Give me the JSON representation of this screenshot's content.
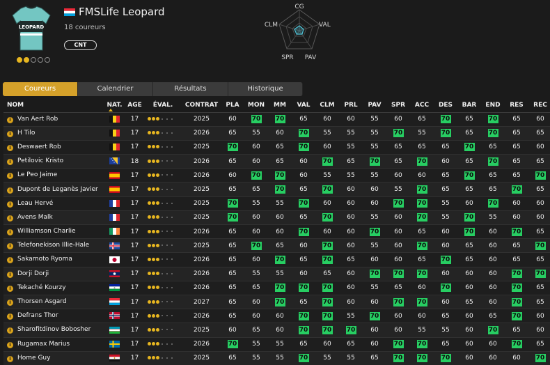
{
  "team": {
    "name": "FMSLife Leopard",
    "riders_count": "18 coureurs",
    "badge": "CNT",
    "stars_filled": 2,
    "stars_total": 5,
    "flag": "lu",
    "jersey_colors": {
      "main": "#73c6c2",
      "band": "#1e2c2b",
      "text": "LEOPARD"
    }
  },
  "radar": {
    "labels": {
      "top": "CG",
      "right": "VAL",
      "bottom_right": "PAV",
      "bottom_left": "SPR",
      "left": "CLM"
    },
    "accent": "#4fc3d6"
  },
  "tabs": [
    {
      "label": "Coureurs",
      "active": true
    },
    {
      "label": "Calendrier",
      "active": false
    },
    {
      "label": "Résultats",
      "active": false
    },
    {
      "label": "Historique",
      "active": false
    }
  ],
  "columns": [
    "NOM",
    "NAT.",
    "AGE",
    "ÉVAL.",
    "CONTRAT",
    "PLA",
    "MON",
    "MM",
    "VAL",
    "CLM",
    "PRL",
    "PAV",
    "SPR",
    "ACC",
    "DES",
    "BAR",
    "END",
    "RES",
    "REC"
  ],
  "highlight_color": "#27ce62",
  "riders": [
    {
      "name": "Van Aert Rob",
      "nat": "be",
      "age": "17",
      "eval": 3,
      "contract": "2025",
      "stats": [
        "60",
        "70",
        "70",
        "65",
        "60",
        "60",
        "55",
        "60",
        "65",
        "70",
        "65",
        "70",
        "65",
        "60"
      ],
      "hi": [
        false,
        true,
        true,
        false,
        false,
        false,
        false,
        false,
        false,
        true,
        false,
        true,
        false,
        false
      ]
    },
    {
      "name": "H Tilo",
      "nat": "be",
      "age": "17",
      "eval": 3,
      "contract": "2026",
      "stats": [
        "65",
        "55",
        "60",
        "70",
        "55",
        "55",
        "55",
        "70",
        "55",
        "70",
        "65",
        "70",
        "65",
        "65"
      ],
      "hi": [
        false,
        false,
        false,
        true,
        false,
        false,
        false,
        true,
        false,
        true,
        false,
        true,
        false,
        false
      ]
    },
    {
      "name": "Deswaert Rob",
      "nat": "be",
      "age": "17",
      "eval": 3,
      "contract": "2025",
      "stats": [
        "70",
        "60",
        "65",
        "70",
        "60",
        "55",
        "55",
        "65",
        "65",
        "65",
        "70",
        "65",
        "65",
        "60"
      ],
      "hi": [
        true,
        false,
        false,
        true,
        false,
        false,
        false,
        false,
        false,
        false,
        true,
        false,
        false,
        false
      ]
    },
    {
      "name": "Petilovic Kristo",
      "nat": "ba",
      "age": "18",
      "eval": 3,
      "contract": "2026",
      "stats": [
        "65",
        "60",
        "65",
        "60",
        "70",
        "65",
        "70",
        "65",
        "70",
        "60",
        "65",
        "70",
        "65",
        "65"
      ],
      "hi": [
        false,
        false,
        false,
        false,
        true,
        false,
        true,
        false,
        true,
        false,
        false,
        true,
        false,
        false
      ]
    },
    {
      "name": "Le Peo Jaime",
      "nat": "es",
      "age": "17",
      "eval": 3,
      "contract": "2026",
      "stats": [
        "60",
        "70",
        "70",
        "60",
        "55",
        "55",
        "55",
        "60",
        "60",
        "65",
        "70",
        "65",
        "65",
        "70"
      ],
      "hi": [
        false,
        true,
        true,
        false,
        false,
        false,
        false,
        false,
        false,
        false,
        true,
        false,
        false,
        true
      ]
    },
    {
      "name": "Dupont de Leganès Javier",
      "nat": "es",
      "age": "17",
      "eval": 3,
      "contract": "2025",
      "stats": [
        "65",
        "65",
        "70",
        "65",
        "70",
        "60",
        "60",
        "55",
        "70",
        "65",
        "65",
        "65",
        "70",
        "65"
      ],
      "hi": [
        false,
        false,
        true,
        false,
        true,
        false,
        false,
        false,
        true,
        false,
        false,
        false,
        true,
        false
      ]
    },
    {
      "name": "Leau Hervé",
      "nat": "fr",
      "age": "17",
      "eval": 3,
      "contract": "2025",
      "stats": [
        "70",
        "55",
        "55",
        "70",
        "60",
        "60",
        "60",
        "70",
        "70",
        "55",
        "60",
        "70",
        "60",
        "60"
      ],
      "hi": [
        true,
        false,
        false,
        true,
        false,
        false,
        false,
        true,
        true,
        false,
        false,
        true,
        false,
        false
      ]
    },
    {
      "name": "Avens Malk",
      "nat": "fr",
      "age": "17",
      "eval": 3,
      "contract": "2025",
      "stats": [
        "70",
        "60",
        "60",
        "65",
        "70",
        "60",
        "55",
        "60",
        "70",
        "55",
        "70",
        "55",
        "60",
        "60"
      ],
      "hi": [
        true,
        false,
        false,
        false,
        true,
        false,
        false,
        false,
        true,
        false,
        true,
        false,
        false,
        false
      ]
    },
    {
      "name": "Williamson Charlie",
      "nat": "ie",
      "age": "17",
      "eval": 3,
      "contract": "2026",
      "stats": [
        "65",
        "60",
        "60",
        "70",
        "60",
        "60",
        "70",
        "60",
        "65",
        "60",
        "70",
        "60",
        "70",
        "65"
      ],
      "hi": [
        false,
        false,
        false,
        true,
        false,
        false,
        true,
        false,
        false,
        false,
        true,
        false,
        true,
        false
      ]
    },
    {
      "name": "Telefonekison Illie-Hale",
      "nat": "is",
      "age": "17",
      "eval": 3,
      "contract": "2025",
      "stats": [
        "65",
        "70",
        "65",
        "60",
        "70",
        "60",
        "55",
        "60",
        "70",
        "60",
        "65",
        "60",
        "65",
        "70"
      ],
      "hi": [
        false,
        true,
        false,
        false,
        true,
        false,
        false,
        false,
        true,
        false,
        false,
        false,
        false,
        true
      ]
    },
    {
      "name": "Sakamoto Ryoma",
      "nat": "jp",
      "age": "17",
      "eval": 3,
      "contract": "2026",
      "stats": [
        "65",
        "60",
        "70",
        "65",
        "70",
        "65",
        "60",
        "60",
        "65",
        "70",
        "65",
        "60",
        "65",
        "65"
      ],
      "hi": [
        false,
        false,
        true,
        false,
        true,
        false,
        false,
        false,
        false,
        true,
        false,
        false,
        false,
        false
      ]
    },
    {
      "name": "Dorji Dorji",
      "nat": "la",
      "age": "17",
      "eval": 3,
      "contract": "2026",
      "stats": [
        "65",
        "55",
        "55",
        "60",
        "65",
        "60",
        "70",
        "70",
        "70",
        "60",
        "60",
        "60",
        "70",
        "70"
      ],
      "hi": [
        false,
        false,
        false,
        false,
        false,
        false,
        true,
        true,
        true,
        false,
        false,
        false,
        true,
        true
      ]
    },
    {
      "name": "Tekaché Kourzy",
      "nat": "ls",
      "age": "17",
      "eval": 3,
      "contract": "2026",
      "stats": [
        "65",
        "65",
        "70",
        "70",
        "70",
        "60",
        "55",
        "65",
        "60",
        "70",
        "60",
        "60",
        "70",
        "65"
      ],
      "hi": [
        false,
        false,
        true,
        true,
        true,
        false,
        false,
        false,
        false,
        true,
        false,
        false,
        true,
        false
      ]
    },
    {
      "name": "Thorsen Asgard",
      "nat": "lu",
      "age": "17",
      "eval": 3,
      "contract": "2027",
      "stats": [
        "65",
        "60",
        "70",
        "65",
        "70",
        "60",
        "60",
        "70",
        "70",
        "60",
        "65",
        "60",
        "70",
        "65"
      ],
      "hi": [
        false,
        false,
        true,
        false,
        true,
        false,
        false,
        true,
        true,
        false,
        false,
        false,
        true,
        false
      ]
    },
    {
      "name": "Defrans Thor",
      "nat": "no",
      "age": "17",
      "eval": 3,
      "contract": "2026",
      "stats": [
        "65",
        "60",
        "60",
        "70",
        "70",
        "55",
        "70",
        "60",
        "60",
        "65",
        "60",
        "65",
        "70",
        "60"
      ],
      "hi": [
        false,
        false,
        false,
        true,
        true,
        false,
        true,
        false,
        false,
        false,
        false,
        false,
        true,
        false
      ]
    },
    {
      "name": "Sharofitdinov Bobosher",
      "nat": "uz",
      "age": "17",
      "eval": 3,
      "contract": "2025",
      "stats": [
        "60",
        "65",
        "60",
        "70",
        "70",
        "70",
        "60",
        "60",
        "55",
        "55",
        "60",
        "70",
        "65",
        "60"
      ],
      "hi": [
        false,
        false,
        false,
        true,
        true,
        true,
        false,
        false,
        false,
        false,
        false,
        true,
        false,
        false
      ]
    },
    {
      "name": "Rugamax Marius",
      "nat": "se",
      "age": "17",
      "eval": 3,
      "contract": "2026",
      "stats": [
        "70",
        "55",
        "55",
        "65",
        "60",
        "65",
        "60",
        "70",
        "70",
        "65",
        "60",
        "60",
        "70",
        "65"
      ],
      "hi": [
        true,
        false,
        false,
        false,
        false,
        false,
        false,
        true,
        true,
        false,
        false,
        false,
        true,
        false
      ]
    },
    {
      "name": "Home Guy",
      "nat": "eg",
      "age": "17",
      "eval": 3,
      "contract": "2025",
      "stats": [
        "65",
        "55",
        "55",
        "70",
        "55",
        "55",
        "65",
        "70",
        "70",
        "70",
        "60",
        "60",
        "60",
        "70"
      ],
      "hi": [
        false,
        false,
        false,
        true,
        false,
        false,
        false,
        true,
        true,
        true,
        false,
        false,
        false,
        true
      ]
    }
  ]
}
